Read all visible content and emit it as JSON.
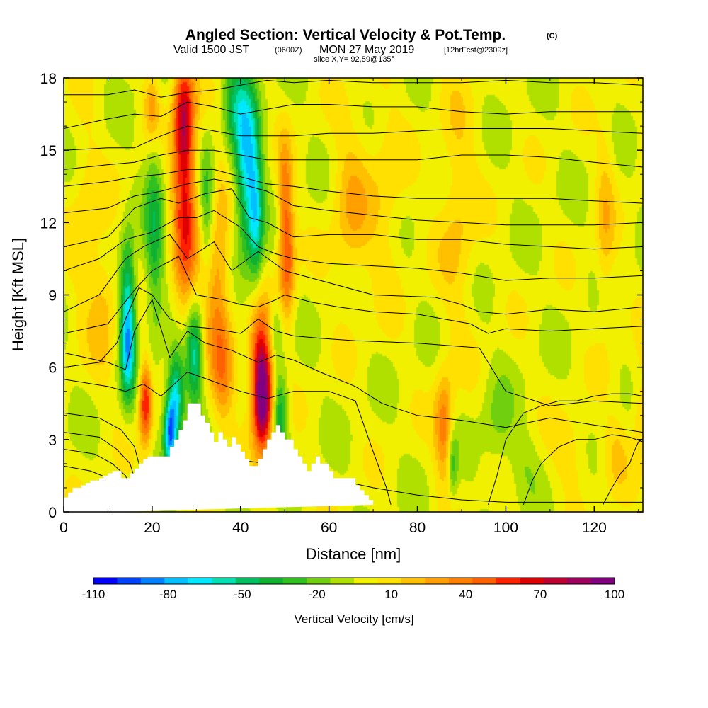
{
  "chart_data": {
    "type": "heatmap",
    "title": "Angled Section: Vertical Velocity & Pot.Temp.",
    "title_suffix": "(C)",
    "subtitle": {
      "valid": "Valid 1500 JST",
      "utc": "(0600Z)",
      "date": "MON 27 May 2019",
      "fcst": "[12hrFcst@2309z]"
    },
    "slice": "slice X,Y= 92,59@135°",
    "xlabel": "Distance [nm]",
    "ylabel": "Height [Kft MSL]",
    "xlim": [
      0,
      131
    ],
    "ylim": [
      0,
      18
    ],
    "xticks": [
      "0",
      "20",
      "40",
      "60",
      "80",
      "100",
      "120"
    ],
    "yticks": [
      "0",
      "3",
      "6",
      "9",
      "12",
      "15",
      "18"
    ],
    "colorbar": {
      "label": "Vertical Velocity [cm/s]",
      "tick_labels": [
        "-110",
        "-80",
        "-50",
        "-20",
        "10",
        "40",
        "70",
        "100"
      ],
      "levels": [
        -110,
        -100,
        -90,
        -80,
        -70,
        -60,
        -50,
        -40,
        -30,
        -20,
        -10,
        0,
        10,
        20,
        30,
        40,
        50,
        60,
        70,
        80,
        90,
        100
      ],
      "colors": [
        "#0000ff",
        "#0040ff",
        "#0080ff",
        "#00c0ff",
        "#00e8ff",
        "#00e0b0",
        "#00c060",
        "#10b030",
        "#30c020",
        "#70d010",
        "#b0e000",
        "#f0f000",
        "#ffe000",
        "#ffc000",
        "#ffa000",
        "#ff8000",
        "#ff6000",
        "#ff2000",
        "#e00000",
        "#c00030",
        "#a00060",
        "#800080"
      ]
    },
    "background_value": 3,
    "velocity_features": [
      {
        "x": 14.5,
        "y": 8.5,
        "sx": 1.2,
        "sy": 2.0,
        "v": -60
      },
      {
        "x": 14.5,
        "y": 6.5,
        "sx": 1.1,
        "sy": 1.4,
        "v": -40
      },
      {
        "x": 18.5,
        "y": 4.5,
        "sx": 1.0,
        "sy": 1.2,
        "v": 70
      },
      {
        "x": 20.5,
        "y": 11.5,
        "sx": 1.5,
        "sy": 3.0,
        "v": -35
      },
      {
        "x": 20.0,
        "y": 16.8,
        "sx": 1.3,
        "sy": 1.0,
        "v": 35
      },
      {
        "x": 24.0,
        "y": 3.3,
        "sx": 1.0,
        "sy": 1.0,
        "v": -85
      },
      {
        "x": 27.5,
        "y": 13.0,
        "sx": 2.0,
        "sy": 3.5,
        "v": 65
      },
      {
        "x": 27.0,
        "y": 16.5,
        "sx": 1.5,
        "sy": 1.5,
        "v": 50
      },
      {
        "x": 25.5,
        "y": 4.8,
        "sx": 1.3,
        "sy": 1.3,
        "v": -70
      },
      {
        "x": 29.5,
        "y": 6.5,
        "sx": 1.3,
        "sy": 1.5,
        "v": -60
      },
      {
        "x": 32.5,
        "y": 12.5,
        "sx": 1.4,
        "sy": 2.0,
        "v": -40
      },
      {
        "x": 34.5,
        "y": 10.0,
        "sx": 2.2,
        "sy": 3.0,
        "v": 40
      },
      {
        "x": 36.0,
        "y": 5.5,
        "sx": 1.8,
        "sy": 1.5,
        "v": 30
      },
      {
        "x": 38.5,
        "y": 17.0,
        "sx": 2.0,
        "sy": 1.5,
        "v": -30
      },
      {
        "x": 41.5,
        "y": 14.5,
        "sx": 2.0,
        "sy": 2.5,
        "v": -70
      },
      {
        "x": 43.5,
        "y": 12.0,
        "sx": 1.2,
        "sy": 1.8,
        "v": -45
      },
      {
        "x": 45.0,
        "y": 4.5,
        "sx": 1.5,
        "sy": 1.4,
        "v": 100
      },
      {
        "x": 44.5,
        "y": 6.5,
        "sx": 1.8,
        "sy": 1.5,
        "v": 60
      },
      {
        "x": 50.5,
        "y": 10.5,
        "sx": 1.3,
        "sy": 1.8,
        "v": 55
      },
      {
        "x": 50.0,
        "y": 13.5,
        "sx": 1.1,
        "sy": 1.5,
        "v": 30
      },
      {
        "x": 49.0,
        "y": 4.0,
        "sx": 1.2,
        "sy": 1.2,
        "v": -45
      },
      {
        "x": 48.0,
        "y": 7.5,
        "sx": 1.2,
        "sy": 1.0,
        "v": -25
      },
      {
        "x": 65.0,
        "y": 12.5,
        "sx": 3.0,
        "sy": 2.5,
        "v": 25
      },
      {
        "x": 73.0,
        "y": 13.0,
        "sx": 3.0,
        "sy": 3.0,
        "v": 15
      },
      {
        "x": 86.0,
        "y": 3.5,
        "sx": 1.5,
        "sy": 1.5,
        "v": 45
      },
      {
        "x": 88.0,
        "y": 2.0,
        "sx": 0.8,
        "sy": 1.0,
        "v": -30
      },
      {
        "x": 89.0,
        "y": 12.5,
        "sx": 3.0,
        "sy": 3.5,
        "v": 20
      },
      {
        "x": 98.0,
        "y": 3.5,
        "sx": 2.5,
        "sy": 1.5,
        "v": -15
      },
      {
        "x": 104.0,
        "y": 2.0,
        "sx": 2.5,
        "sy": 1.0,
        "v": -10
      },
      {
        "x": 115.0,
        "y": 2.5,
        "sx": 3.0,
        "sy": 1.2,
        "v": 15
      },
      {
        "x": 122.5,
        "y": 12.0,
        "sx": 1.5,
        "sy": 3.0,
        "v": 20
      },
      {
        "x": 125.0,
        "y": 2.5,
        "sx": 2.0,
        "sy": 1.2,
        "v": 15
      },
      {
        "x": 130.5,
        "y": 4.0,
        "sx": 1.5,
        "sy": 1.5,
        "v": 20
      },
      {
        "x": 5.0,
        "y": 12.0,
        "sx": 2.5,
        "sy": 3.0,
        "v": 15
      },
      {
        "x": 9.0,
        "y": 8.5,
        "sx": 2.0,
        "sy": 2.0,
        "v": 20
      }
    ],
    "isentropes": [
      {
        "x": [
          0,
          8,
          14,
          20,
          26,
          30,
          36,
          42,
          46,
          52,
          60,
          70,
          80,
          90,
          100,
          110,
          120,
          131
        ],
        "y": [
          0.5,
          0.7,
          1.0,
          1.2,
          1.6,
          1.8,
          2.0,
          2.1,
          2.0,
          1.8,
          1.4,
          1.0,
          0.7,
          0.5,
          0.4,
          0.4,
          0.4,
          0.4
        ]
      },
      {
        "x": [
          0,
          6,
          10,
          13,
          14
        ],
        "y": [
          1.9,
          1.7,
          1.4,
          1.0,
          0.6
        ]
      },
      {
        "x": [
          0,
          7,
          11,
          14,
          15
        ],
        "y": [
          2.6,
          2.4,
          2.0,
          1.5,
          1.0
        ]
      },
      {
        "x": [
          0,
          8,
          12,
          15,
          16
        ],
        "y": [
          3.3,
          3.1,
          2.6,
          2.0,
          1.4
        ]
      },
      {
        "x": [
          0,
          8,
          13,
          16,
          17,
          18
        ],
        "y": [
          4.1,
          3.9,
          3.4,
          2.7,
          2.0,
          1.5
        ]
      },
      {
        "x": [
          0,
          10,
          14,
          18,
          22,
          28,
          34,
          40,
          46,
          52,
          60,
          66,
          70,
          73,
          74
        ],
        "y": [
          5.5,
          5.2,
          5.0,
          5.3,
          4.8,
          5.8,
          5.4,
          5.0,
          4.7,
          5.0,
          5.0,
          4.6,
          2.5,
          1.0,
          0.3
        ]
      },
      {
        "x": [
          0,
          10,
          14,
          16,
          20,
          24,
          28,
          32,
          38,
          44,
          48,
          52,
          58,
          66,
          72,
          80,
          90,
          100,
          110,
          120,
          131
        ],
        "y": [
          6.6,
          6.2,
          5.9,
          7.5,
          8.8,
          6.4,
          7.5,
          7.0,
          6.7,
          6.2,
          6.5,
          6.3,
          5.8,
          5.2,
          4.5,
          4.0,
          3.8,
          3.5,
          3.9,
          3.6,
          3.3
        ]
      },
      {
        "x": [
          0,
          8,
          12,
          14,
          17,
          20,
          24,
          28,
          34,
          40,
          44,
          48,
          52,
          58,
          66,
          80,
          94,
          100,
          110,
          120,
          131
        ],
        "y": [
          6.0,
          6.2,
          7.0,
          8.0,
          9.3,
          9.0,
          8.0,
          7.7,
          7.6,
          7.4,
          8.0,
          7.5,
          7.3,
          7.2,
          7.1,
          7.0,
          6.8,
          5.0,
          4.4,
          4.6,
          4.5
        ]
      },
      {
        "x": [
          0,
          10,
          16,
          20,
          26,
          30,
          36,
          40,
          44,
          48,
          50,
          56,
          62,
          70,
          80,
          86,
          92,
          96,
          100,
          110,
          120,
          131
        ],
        "y": [
          7.4,
          7.8,
          9.2,
          10.0,
          10.6,
          9.0,
          8.8,
          8.6,
          8.5,
          8.8,
          9.0,
          8.7,
          8.5,
          8.3,
          8.2,
          8.0,
          7.8,
          7.4,
          7.6,
          7.5,
          7.6,
          7.7
        ]
      },
      {
        "x": [
          0,
          8,
          14,
          18,
          24,
          28,
          34,
          38,
          44,
          50,
          60,
          70,
          84,
          90,
          94,
          100,
          110,
          120,
          131
        ],
        "y": [
          8.3,
          9.0,
          10.5,
          11.0,
          11.5,
          10.5,
          11.2,
          10.0,
          10.8,
          10.0,
          9.5,
          9.0,
          8.9,
          8.6,
          8.3,
          8.2,
          8.4,
          8.3,
          8.5
        ]
      },
      {
        "x": [
          0,
          8,
          14,
          20,
          26,
          30,
          34,
          40,
          44,
          48,
          52,
          60,
          70,
          80,
          90,
          100,
          110,
          120,
          131
        ],
        "y": [
          10.0,
          10.5,
          11.3,
          11.6,
          12.2,
          12.2,
          12.5,
          11.8,
          11.0,
          10.7,
          10.5,
          10.3,
          10.2,
          10.1,
          9.9,
          9.6,
          9.7,
          9.7,
          9.8
        ]
      },
      {
        "x": [
          0,
          10,
          16,
          22,
          26,
          32,
          38,
          42,
          46,
          52,
          60,
          70,
          80,
          90,
          100,
          110,
          120,
          131
        ],
        "y": [
          11.0,
          11.4,
          12.6,
          13.0,
          12.8,
          13.2,
          13.4,
          12.2,
          12.0,
          11.4,
          11.5,
          11.5,
          11.3,
          11.3,
          11.1,
          11.0,
          10.9,
          11.0
        ]
      },
      {
        "x": [
          0,
          10,
          16,
          22,
          28,
          34,
          40,
          46,
          52,
          60,
          70,
          80,
          90,
          100,
          110,
          120,
          131
        ],
        "y": [
          12.4,
          12.6,
          13.1,
          13.3,
          13.6,
          13.8,
          13.6,
          13.3,
          12.7,
          12.5,
          12.3,
          12.1,
          12.0,
          11.9,
          11.9,
          11.9,
          12.0
        ]
      },
      {
        "x": [
          0,
          10,
          16,
          22,
          28,
          34,
          40,
          46,
          52,
          60,
          70,
          80,
          90,
          100,
          110,
          120,
          131
        ],
        "y": [
          13.5,
          13.7,
          13.9,
          14.0,
          14.2,
          14.2,
          13.9,
          13.6,
          13.5,
          13.3,
          13.1,
          13.0,
          13.0,
          13.0,
          13.0,
          12.9,
          12.8
        ]
      },
      {
        "x": [
          0,
          10,
          16,
          22,
          28,
          34,
          40,
          46,
          52,
          60,
          70,
          80,
          90,
          100,
          110,
          120,
          131
        ],
        "y": [
          14.2,
          14.4,
          14.5,
          14.8,
          15.0,
          15.0,
          14.8,
          14.6,
          14.6,
          14.6,
          14.6,
          14.6,
          14.8,
          14.8,
          14.7,
          14.5,
          14.3
        ]
      },
      {
        "x": [
          0,
          10,
          16,
          22,
          28,
          34,
          40,
          46,
          52,
          60,
          70,
          80,
          90,
          100,
          110,
          120,
          131
        ],
        "y": [
          15.0,
          15.1,
          15.1,
          15.6,
          16.0,
          15.8,
          15.6,
          15.6,
          15.6,
          15.7,
          15.7,
          15.8,
          15.9,
          15.9,
          15.9,
          15.8,
          15.7
        ]
      },
      {
        "x": [
          0,
          10,
          16,
          22,
          28,
          34,
          40,
          46,
          52,
          60,
          70,
          80,
          90,
          100,
          110,
          120,
          131
        ],
        "y": [
          15.9,
          16.3,
          16.5,
          16.4,
          17.0,
          16.8,
          16.5,
          16.7,
          16.9,
          16.9,
          16.8,
          16.8,
          16.6,
          16.5,
          16.6,
          16.6,
          16.6
        ]
      },
      {
        "x": [
          0,
          10,
          16,
          22,
          28,
          34,
          40,
          46,
          52,
          60,
          70,
          80,
          90,
          100,
          110,
          120,
          131
        ],
        "y": [
          17.3,
          17.3,
          17.5,
          17.2,
          17.4,
          17.5,
          17.7,
          17.9,
          17.8,
          17.9,
          17.8,
          17.8,
          17.8,
          17.9,
          17.8,
          17.8,
          17.7
        ]
      },
      {
        "x": [
          96,
          98,
          100,
          104,
          108,
          112,
          116,
          120,
          124,
          128,
          131
        ],
        "y": [
          0.3,
          1.5,
          3.0,
          4.1,
          4.4,
          4.6,
          4.6,
          4.8,
          4.9,
          4.9,
          4.8
        ]
      },
      {
        "x": [
          104,
          106,
          108,
          112,
          116,
          120,
          124,
          128,
          131
        ],
        "y": [
          0.3,
          1.3,
          2.0,
          2.7,
          3.0,
          3.0,
          3.2,
          3.1,
          2.9
        ]
      },
      {
        "x": [
          122,
          124,
          126,
          128,
          129,
          130,
          131
        ],
        "y": [
          0.3,
          1.0,
          1.6,
          2.0,
          2.5,
          2.9,
          3.0
        ]
      }
    ],
    "terrain": {
      "x": [
        0,
        1,
        1,
        2,
        2,
        4,
        4,
        5,
        5,
        6,
        6,
        8,
        8,
        9,
        9,
        10,
        10,
        11,
        11,
        12,
        12,
        13,
        13,
        14,
        14,
        15,
        15,
        16,
        16,
        17,
        17,
        18,
        18,
        19,
        19,
        20,
        20,
        24,
        24,
        25,
        25,
        26,
        26,
        27,
        27,
        28,
        28,
        31,
        31,
        32,
        32,
        33,
        33,
        34,
        34,
        35,
        35,
        36,
        36,
        37,
        37,
        38,
        38,
        39,
        39,
        40,
        40,
        41,
        41,
        42,
        42,
        43,
        43,
        44,
        44,
        45,
        45,
        46,
        46,
        47,
        47,
        48,
        48,
        49,
        49,
        50,
        50,
        52,
        52,
        53,
        53,
        54,
        54,
        55,
        55,
        56,
        56,
        57,
        57,
        58,
        58,
        60,
        60,
        61,
        61,
        62,
        62,
        66,
        66,
        67,
        67,
        68,
        68,
        69,
        69,
        70,
        70,
        71,
        71,
        131
      ],
      "y": [
        0.6,
        0.6,
        0.8,
        0.8,
        1.0,
        1.0,
        1.1,
        1.1,
        1.2,
        1.2,
        1.3,
        1.3,
        1.4,
        1.4,
        1.5,
        1.5,
        1.6,
        1.6,
        1.7,
        1.7,
        1.7,
        1.7,
        1.4,
        1.4,
        1.4,
        1.4,
        1.6,
        1.6,
        1.8,
        1.8,
        2.0,
        2.0,
        2.2,
        2.2,
        2.3,
        2.3,
        2.3,
        2.3,
        2.7,
        2.7,
        3.0,
        3.0,
        3.4,
        3.4,
        3.8,
        3.8,
        4.5,
        4.5,
        4.0,
        4.0,
        3.7,
        3.7,
        3.3,
        3.3,
        2.9,
        2.9,
        3.3,
        3.3,
        3.0,
        3.0,
        2.7,
        2.7,
        3.1,
        3.1,
        2.8,
        2.8,
        2.5,
        2.5,
        2.2,
        2.2,
        1.9,
        1.9,
        1.9,
        1.9,
        2.2,
        2.2,
        2.6,
        2.6,
        3.0,
        3.0,
        3.3,
        3.3,
        3.6,
        3.6,
        3.3,
        3.3,
        3.0,
        3.0,
        2.6,
        2.6,
        2.3,
        2.3,
        2.0,
        2.0,
        1.7,
        1.7,
        2.0,
        2.0,
        2.3,
        2.3,
        2.0,
        2.0,
        1.7,
        1.7,
        1.4,
        1.4,
        1.4,
        1.4,
        1.1,
        1.1,
        0.9,
        0.9,
        0.7,
        0.7,
        0.5,
        0.5,
        0.3,
        0.3,
        0.3
      ]
    }
  }
}
